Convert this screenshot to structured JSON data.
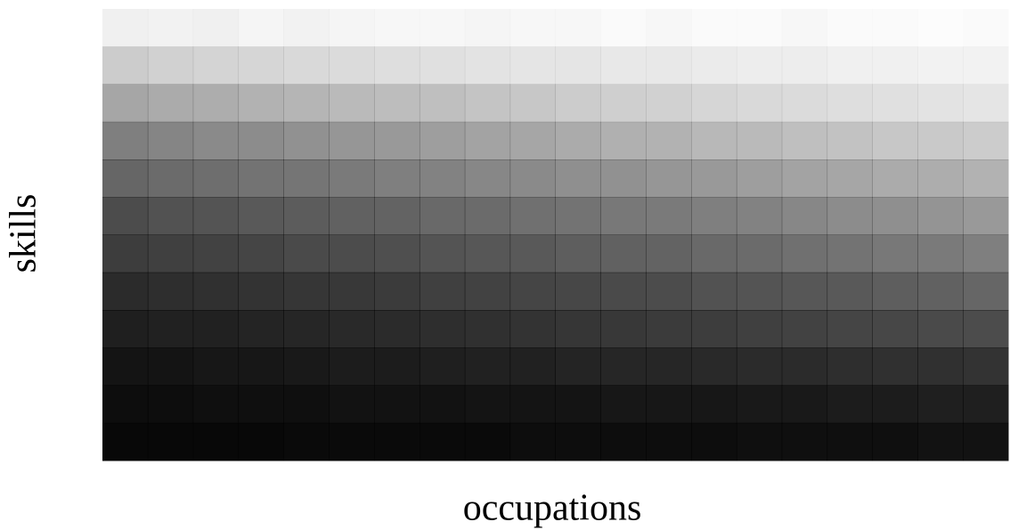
{
  "chart_data": {
    "type": "heatmap",
    "xlabel": "occupations",
    "ylabel": "skills",
    "color": "#000000",
    "z": [
      [
        0.06,
        0.05,
        0.06,
        0.04,
        0.05,
        0.04,
        0.03,
        0.03,
        0.04,
        0.03,
        0.03,
        0.02,
        0.03,
        0.02,
        0.02,
        0.03,
        0.02,
        0.02,
        0.01,
        0.02
      ],
      [
        0.2,
        0.18,
        0.17,
        0.16,
        0.15,
        0.14,
        0.13,
        0.12,
        0.11,
        0.1,
        0.1,
        0.09,
        0.09,
        0.08,
        0.07,
        0.07,
        0.06,
        0.06,
        0.05,
        0.05
      ],
      [
        0.35,
        0.33,
        0.32,
        0.3,
        0.29,
        0.27,
        0.26,
        0.25,
        0.23,
        0.22,
        0.2,
        0.19,
        0.18,
        0.16,
        0.15,
        0.14,
        0.13,
        0.12,
        0.11,
        0.1
      ],
      [
        0.5,
        0.48,
        0.46,
        0.45,
        0.43,
        0.41,
        0.4,
        0.38,
        0.36,
        0.35,
        0.33,
        0.31,
        0.3,
        0.28,
        0.27,
        0.25,
        0.24,
        0.22,
        0.21,
        0.2
      ],
      [
        0.6,
        0.58,
        0.57,
        0.55,
        0.54,
        0.52,
        0.5,
        0.49,
        0.47,
        0.46,
        0.44,
        0.43,
        0.41,
        0.4,
        0.38,
        0.36,
        0.35,
        0.33,
        0.32,
        0.3
      ],
      [
        0.7,
        0.68,
        0.67,
        0.65,
        0.64,
        0.62,
        0.61,
        0.59,
        0.58,
        0.56,
        0.55,
        0.53,
        0.52,
        0.5,
        0.49,
        0.47,
        0.45,
        0.44,
        0.42,
        0.4
      ],
      [
        0.76,
        0.75,
        0.74,
        0.73,
        0.71,
        0.7,
        0.69,
        0.67,
        0.66,
        0.65,
        0.63,
        0.62,
        0.61,
        0.59,
        0.58,
        0.56,
        0.55,
        0.53,
        0.52,
        0.5
      ],
      [
        0.83,
        0.82,
        0.81,
        0.8,
        0.79,
        0.78,
        0.77,
        0.75,
        0.74,
        0.73,
        0.72,
        0.71,
        0.7,
        0.68,
        0.67,
        0.66,
        0.65,
        0.63,
        0.62,
        0.6
      ],
      [
        0.88,
        0.87,
        0.87,
        0.86,
        0.85,
        0.84,
        0.83,
        0.82,
        0.81,
        0.8,
        0.79,
        0.78,
        0.77,
        0.76,
        0.75,
        0.74,
        0.73,
        0.72,
        0.71,
        0.7
      ],
      [
        0.92,
        0.92,
        0.91,
        0.91,
        0.9,
        0.89,
        0.89,
        0.88,
        0.87,
        0.87,
        0.86,
        0.85,
        0.85,
        0.84,
        0.83,
        0.83,
        0.82,
        0.81,
        0.81,
        0.8
      ],
      [
        0.95,
        0.95,
        0.94,
        0.94,
        0.94,
        0.93,
        0.93,
        0.93,
        0.92,
        0.92,
        0.92,
        0.91,
        0.91,
        0.91,
        0.9,
        0.9,
        0.89,
        0.89,
        0.88,
        0.88
      ],
      [
        0.97,
        0.97,
        0.97,
        0.97,
        0.96,
        0.96,
        0.96,
        0.96,
        0.96,
        0.95,
        0.95,
        0.95,
        0.95,
        0.95,
        0.94,
        0.94,
        0.94,
        0.94,
        0.93,
        0.93
      ]
    ]
  }
}
